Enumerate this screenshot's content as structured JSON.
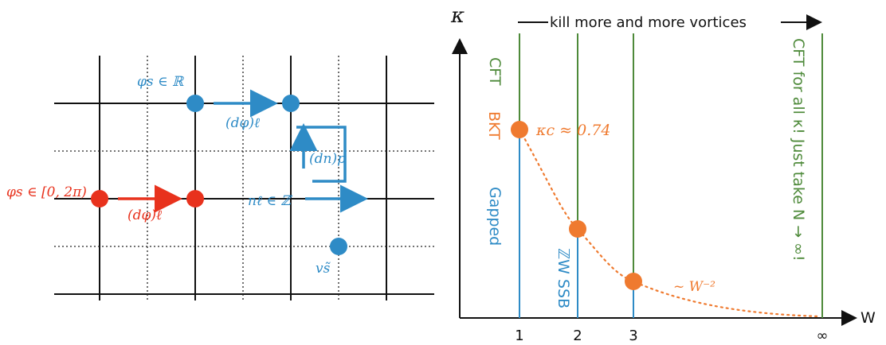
{
  "colors": {
    "blue": "#2e8bc6",
    "red": "#e8321d",
    "orange": "#ef7a2f",
    "green": "#4e8a3a",
    "black": "#111111"
  },
  "lattice": {
    "site_label_blue": "φs ∈ ℝ",
    "site_label_red": "φs ∈ [0, 2π)",
    "link_label_blue": "(dφ)ℓ",
    "link_label_red": "(dφ)ℓ",
    "plaquette_label": "(dn)p",
    "integer_link_label": "nℓ ∈ ℤ",
    "vortex_label": "vs̃"
  },
  "phase": {
    "yaxis_label": "κ",
    "xaxis_label": "W",
    "top_arrow_text": "kill more and more vortices",
    "x_ticks": [
      "1",
      "2",
      "3",
      "∞"
    ],
    "kappa_c_label": "κc ≈ 0.74",
    "scaling_label": "~ W⁻²",
    "cft_label": "CFT",
    "bkt_label": "BKT",
    "gapped_label": "Gapped",
    "ssb_label": "ℤW SSB",
    "cft_all_label": "CFT for all κ!  Just take N → ∞!"
  }
}
